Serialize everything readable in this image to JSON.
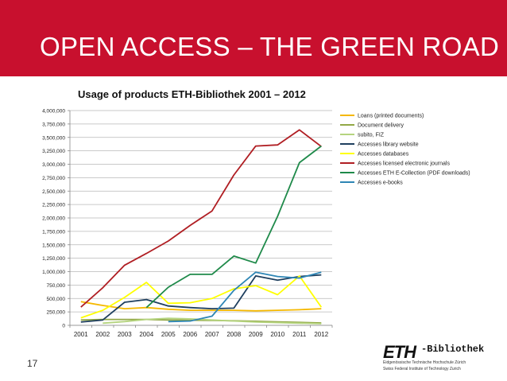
{
  "slide": {
    "title": "OPEN ACCESS – THE GREEN ROAD",
    "number": "17",
    "colors": {
      "header": "#c8102e",
      "text": "#ffffff"
    }
  },
  "logo": {
    "mark": "ETH",
    "word": "-Bibliothek",
    "line1": "Eidgenössische Technische Hochschule Zürich",
    "line2": "Swiss Federal Institute of Technology Zurich"
  },
  "chart_data": {
    "type": "line",
    "title": "Usage of products ETH-Bibliothek 2001 – 2012",
    "xlabel": "",
    "ylabel": "",
    "x": [
      2001,
      2002,
      2003,
      2004,
      2005,
      2006,
      2007,
      2008,
      2009,
      2010,
      2011,
      2012
    ],
    "ylim": [
      0,
      4000000
    ],
    "yticks": [
      0,
      250000,
      500000,
      750000,
      1000000,
      1250000,
      1500000,
      1750000,
      2000000,
      2250000,
      2500000,
      2750000,
      3000000,
      3250000,
      3500000,
      3750000,
      4000000
    ],
    "ytick_labels": [
      "0",
      "250,000",
      "500,000",
      "750,000",
      "1,000,000",
      "1,250,000",
      "1,500,000",
      "1,750,000",
      "2,000,000",
      "2,250,000",
      "2,500,000",
      "2,750,000",
      "3,000,000",
      "3,250,000",
      "3,500,000",
      "3,750,000",
      "4,000,000"
    ],
    "grid": true,
    "legend_position": "right",
    "series": [
      {
        "name": "Loans (printed documents)",
        "color": "#f5b800",
        "values": [
          440000,
          370000,
          310000,
          330000,
          300000,
          280000,
          280000,
          280000,
          270000,
          280000,
          290000,
          310000
        ]
      },
      {
        "name": "Document delivery",
        "color": "#92a846",
        "values": [
          100000,
          110000,
          110000,
          110000,
          100000,
          95000,
          90000,
          85000,
          75000,
          65000,
          55000,
          45000
        ]
      },
      {
        "name": "subito, FIZ",
        "color": "#b5d47f",
        "values": [
          null,
          40000,
          70000,
          110000,
          130000,
          120000,
          100000,
          80000,
          60000,
          50000,
          40000,
          30000
        ]
      },
      {
        "name": "Accesses library website",
        "color": "#1f3f5e",
        "values": [
          60000,
          100000,
          430000,
          480000,
          360000,
          330000,
          310000,
          320000,
          920000,
          840000,
          910000,
          940000
        ]
      },
      {
        "name": "Accesses databases",
        "color": "#ffff00",
        "values": [
          140000,
          280000,
          520000,
          800000,
          410000,
          420000,
          500000,
          680000,
          740000,
          570000,
          920000,
          340000
        ]
      },
      {
        "name": "Accesses licensed electronic journals",
        "color": "#b01e23",
        "values": [
          340000,
          700000,
          1120000,
          1340000,
          1570000,
          1860000,
          2130000,
          2800000,
          3340000,
          3360000,
          3640000,
          3330000
        ]
      },
      {
        "name": "Accesses ETH E-Collection (PDF downloads)",
        "color": "#1f8a4a",
        "values": [
          null,
          null,
          null,
          330000,
          710000,
          950000,
          950000,
          1290000,
          1160000,
          2030000,
          3030000,
          3340000
        ]
      },
      {
        "name": "Accesses e-books",
        "color": "#2e86b5",
        "values": [
          null,
          null,
          null,
          null,
          70000,
          80000,
          170000,
          650000,
          990000,
          910000,
          880000,
          990000
        ]
      }
    ]
  }
}
